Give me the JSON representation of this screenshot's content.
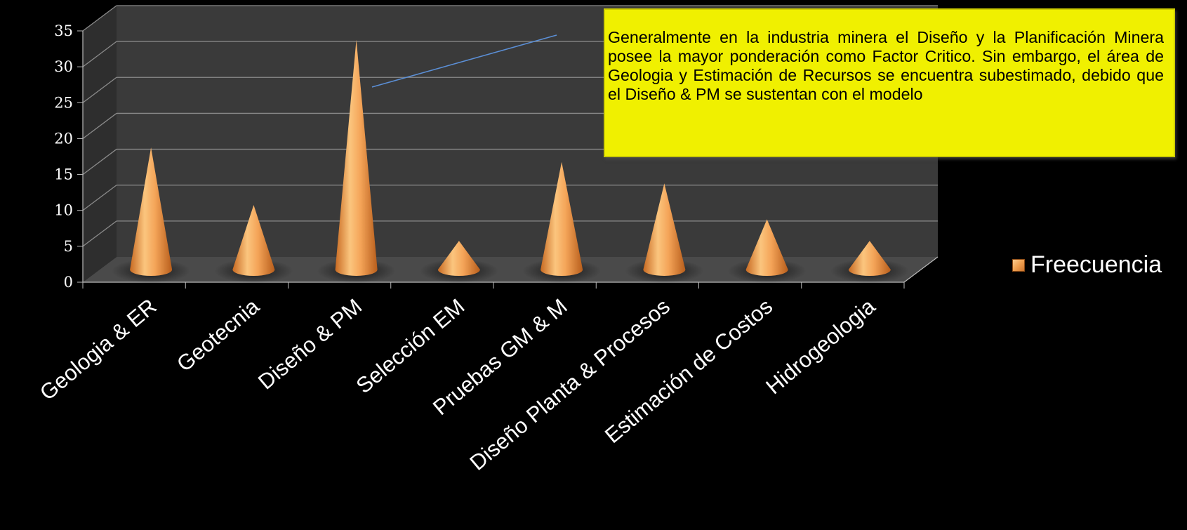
{
  "chart_data": {
    "type": "bar",
    "style": "3d-cone",
    "categories": [
      "Geologia & ER",
      "Geotecnia",
      "Diseño & PM",
      "Selección EM",
      "Pruebas GM & M",
      "Diseño Planta & Procesos",
      "Estimación de Costos",
      "Hidrogeologia"
    ],
    "series": [
      {
        "name": "Freecuencia",
        "values": [
          17,
          9,
          32,
          4,
          15,
          12,
          7,
          4
        ]
      }
    ],
    "ylim": [
      0,
      35
    ],
    "yticks": [
      "0",
      "5",
      "10",
      "15",
      "20",
      "25",
      "30",
      "35"
    ],
    "grid": true,
    "legend_position": "right",
    "colors": {
      "cone": "#f0a050",
      "wall": "#3a3a3a",
      "floor": "#4a4a4a",
      "grid": "#8a8a8a",
      "background": "#000000",
      "trendline": "#5b8fd6"
    }
  },
  "annotation": {
    "text": "Generalmente en la industria minera el Diseño y la Planificación Minera posee la mayor ponderación como Factor Critico. Sin embargo, el área de Geologia y Estimación de Recursos se encuentra subestimado, debido que el Diseño & PM se sustentan con el modelo",
    "background": "#f0f000"
  }
}
